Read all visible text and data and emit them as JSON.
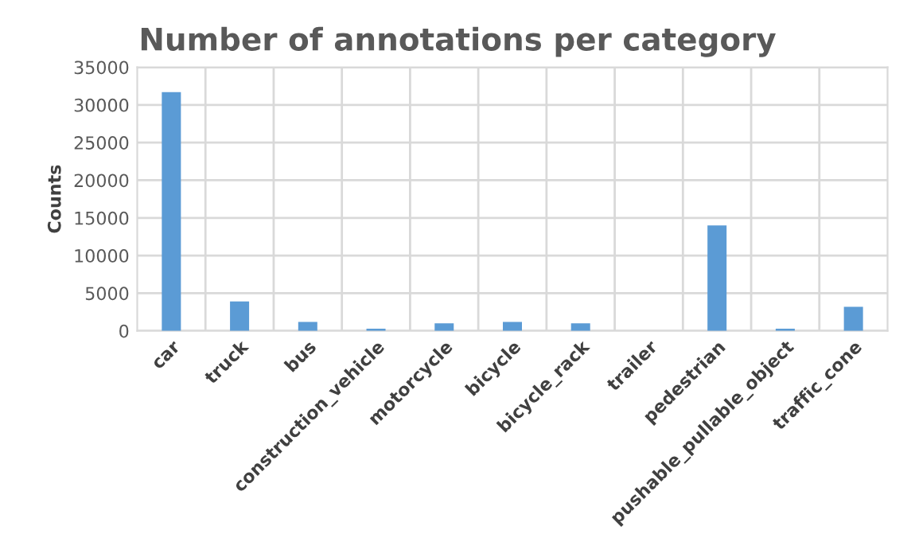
{
  "chart_data": {
    "type": "bar",
    "title": "Number of annotations per category",
    "ylabel": "Counts",
    "categories": [
      "car",
      "truck",
      "bus",
      "construction_vehicle",
      "motorcycle",
      "bicycle",
      "bicycle_rack",
      "trailer",
      "pedestrian",
      "pushable_pullable_object",
      "traffic_cone"
    ],
    "values": [
      31700,
      3900,
      1200,
      300,
      1000,
      1200,
      1000,
      null,
      14000,
      300,
      3200
    ],
    "color": "#5b9bd5",
    "ylim": [
      0,
      35000
    ],
    "yticks": [
      0,
      5000,
      10000,
      15000,
      20000,
      25000,
      30000,
      35000
    ],
    "grid": true
  }
}
